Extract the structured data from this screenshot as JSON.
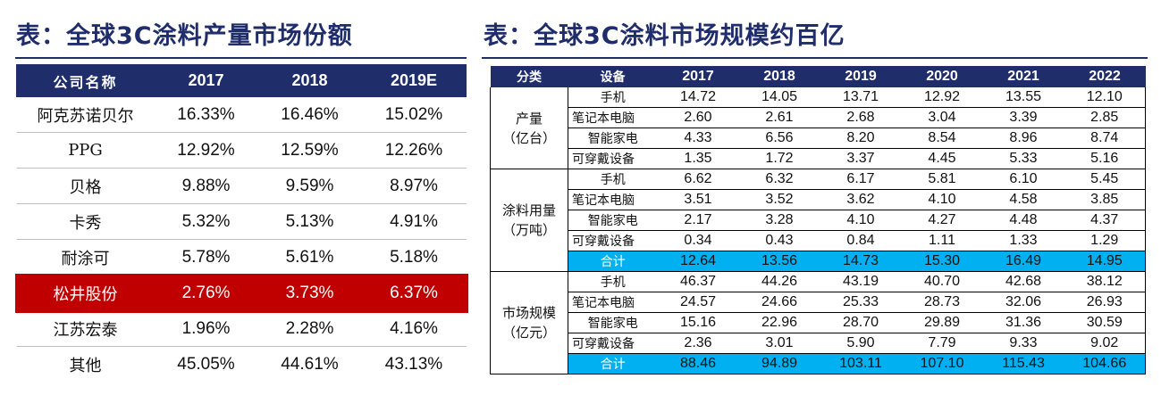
{
  "left": {
    "title": "表：全球3C涂料产量市场份额",
    "headers": [
      "公司名称",
      "2017",
      "2018",
      "2019E"
    ],
    "rows": [
      [
        "阿克苏诺贝尔",
        "16.33%",
        "16.46%",
        "15.02%"
      ],
      [
        "PPG",
        "12.92%",
        "12.59%",
        "12.26%"
      ],
      [
        "贝格",
        "9.88%",
        "9.59%",
        "8.97%"
      ],
      [
        "卡秀",
        "5.32%",
        "5.13%",
        "4.91%"
      ],
      [
        "耐涂可",
        "5.78%",
        "5.61%",
        "5.18%"
      ],
      [
        "松井股份",
        "2.76%",
        "3.73%",
        "6.37%"
      ],
      [
        "江苏宏泰",
        "1.96%",
        "2.28%",
        "4.16%"
      ],
      [
        "其他",
        "45.05%",
        "44.61%",
        "43.13%"
      ]
    ],
    "highlight_color": "#c00000"
  },
  "right": {
    "title": "表：全球3C涂料市场规模约百亿",
    "headers": [
      "分类",
      "设备",
      "2017",
      "2018",
      "2019",
      "2020",
      "2021",
      "2022"
    ],
    "groups": [
      {
        "category_line1": "产量",
        "category_line2": "（亿台）",
        "rows": [
          [
            "手机",
            "14.72",
            "14.05",
            "13.71",
            "12.92",
            "13.55",
            "12.10"
          ],
          [
            "笔记本电脑",
            "2.60",
            "2.61",
            "2.68",
            "3.04",
            "3.39",
            "2.85"
          ],
          [
            "智能家电",
            "4.33",
            "6.56",
            "8.20",
            "8.54",
            "8.96",
            "8.74"
          ],
          [
            "可穿戴设备",
            "1.35",
            "1.72",
            "3.37",
            "4.45",
            "5.33",
            "5.16"
          ]
        ]
      },
      {
        "category_line1": "涂料用量",
        "category_line2": "（万吨）",
        "rows": [
          [
            "手机",
            "6.62",
            "6.32",
            "6.17",
            "5.81",
            "6.10",
            "5.45"
          ],
          [
            "笔记本电脑",
            "3.51",
            "3.52",
            "3.62",
            "4.10",
            "4.58",
            "3.85"
          ],
          [
            "智能家电",
            "2.17",
            "3.28",
            "4.10",
            "4.27",
            "4.48",
            "4.37"
          ],
          [
            "可穿戴设备",
            "0.34",
            "0.43",
            "0.84",
            "1.11",
            "1.33",
            "1.29"
          ]
        ],
        "total": [
          "合计",
          "12.64",
          "13.56",
          "14.73",
          "15.30",
          "16.49",
          "14.95"
        ]
      },
      {
        "category_line1": "市场规模",
        "category_line2": "（亿元）",
        "rows": [
          [
            "手机",
            "46.37",
            "44.26",
            "43.19",
            "40.70",
            "42.68",
            "38.12"
          ],
          [
            "笔记本电脑",
            "24.57",
            "24.66",
            "25.33",
            "28.73",
            "32.06",
            "26.93"
          ],
          [
            "智能家电",
            "15.16",
            "22.96",
            "28.70",
            "29.89",
            "31.36",
            "30.59"
          ],
          [
            "可穿戴设备",
            "2.36",
            "3.01",
            "5.90",
            "7.79",
            "9.33",
            "9.02"
          ]
        ],
        "total": [
          "合计",
          "88.46",
          "94.89",
          "103.11",
          "107.10",
          "115.43",
          "104.66"
        ]
      }
    ],
    "total_row_color": "#00b0f0",
    "header_color": "#1f2d6b"
  }
}
